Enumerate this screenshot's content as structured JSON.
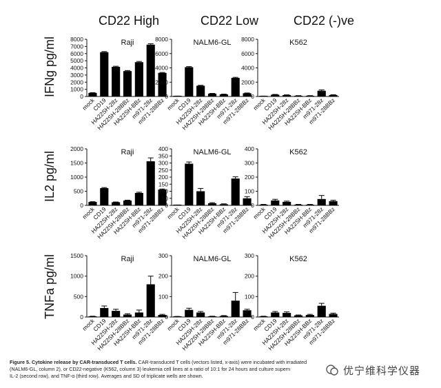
{
  "column_headers": [
    "CD22 High",
    "CD22 Low",
    "CD22 (-)ve"
  ],
  "row_labels": [
    "IFNg pg/ml",
    "IL2 pg/ml",
    "TNFa pg/ml"
  ],
  "cell_lines": [
    "Raji",
    "NALM6-GL",
    "K562"
  ],
  "chart_data": [
    {
      "type": "bar",
      "row": 0,
      "col": 0,
      "title": "Raji",
      "ylabel": "IFNg pg/ml",
      "ylim": [
        0,
        8000
      ],
      "yticks": [
        0,
        1000,
        2000,
        3000,
        4000,
        5000,
        6000,
        7000,
        8000
      ],
      "categories": [
        "mock",
        "CD19",
        "HA22SH-28z",
        "HA22SH-28BBz",
        "HA22SH-BBz",
        "m971-28z",
        "m971-28BBz"
      ],
      "values": [
        500,
        6200,
        4150,
        3550,
        4800,
        7250,
        3300
      ],
      "errors": [
        40,
        80,
        80,
        80,
        100,
        120,
        60
      ]
    },
    {
      "type": "bar",
      "row": 0,
      "col": 1,
      "title": "NALM6-GL",
      "ylabel": "",
      "ylim": [
        0,
        8000
      ],
      "yticks": [
        0,
        2000,
        4000,
        6000,
        8000
      ],
      "categories": [
        "mock",
        "CD19",
        "HA22SH-28z",
        "HA22SH-28BBz",
        "HA22SH-BBz",
        "m971-28z",
        "m971-28BBz"
      ],
      "values": [
        50,
        4100,
        1500,
        400,
        300,
        2600,
        450
      ],
      "errors": [
        10,
        80,
        60,
        30,
        30,
        80,
        40
      ]
    },
    {
      "type": "bar",
      "row": 0,
      "col": 2,
      "title": "K562",
      "ylabel": "",
      "ylim": [
        0,
        8000
      ],
      "yticks": [
        0,
        2000,
        4000,
        6000,
        8000
      ],
      "categories": [
        "mock",
        "CD19",
        "HA22SH-28z",
        "HA22SH-28BBz",
        "HA22SH-BBz",
        "m971-28z",
        "m971-28BBz"
      ],
      "values": [
        50,
        250,
        200,
        100,
        100,
        800,
        200
      ],
      "errors": [
        10,
        40,
        30,
        20,
        20,
        120,
        40
      ]
    },
    {
      "type": "bar",
      "row": 1,
      "col": 0,
      "title": "Raji",
      "ylabel": "IL2 pg/ml",
      "ylim": [
        0,
        2000
      ],
      "yticks": [
        0,
        500,
        1000,
        1500,
        2000
      ],
      "categories": [
        "mock",
        "CD19",
        "HA22SH-28z",
        "HA22SH-28BBz",
        "HA22SH-BBz",
        "m971-28z",
        "m971-28BBz"
      ],
      "values": [
        120,
        610,
        110,
        170,
        440,
        1560,
        560
      ],
      "errors": [
        10,
        20,
        10,
        15,
        25,
        120,
        20
      ]
    },
    {
      "type": "bar",
      "row": 1,
      "col": 1,
      "title": "NALM6-GL",
      "ylabel": "",
      "ylim": [
        0,
        400
      ],
      "yticks": [
        0,
        50,
        100,
        150,
        200,
        250,
        300,
        350,
        400
      ],
      "categories": [
        "mock",
        "CD19",
        "HA22SH-28z",
        "HA22SH-28BBz",
        "HA22SH-BBz",
        "m971-28z",
        "m971-28BBz"
      ],
      "values": [
        2,
        295,
        100,
        15,
        8,
        190,
        50
      ],
      "errors": [
        1,
        12,
        20,
        4,
        3,
        12,
        12
      ]
    },
    {
      "type": "bar",
      "row": 1,
      "col": 2,
      "title": "K562",
      "ylabel": "",
      "ylim": [
        0,
        400
      ],
      "yticks": [
        0,
        100,
        200,
        300,
        400
      ],
      "categories": [
        "mock",
        "CD19",
        "HA22SH-28z",
        "HA22SH-28BBz",
        "HA22SH-BBz",
        "m971-28z",
        "m971-28BBz"
      ],
      "values": [
        5,
        35,
        25,
        5,
        5,
        45,
        30
      ],
      "errors": [
        2,
        8,
        5,
        2,
        2,
        25,
        6
      ]
    },
    {
      "type": "bar",
      "row": 2,
      "col": 0,
      "title": "Raji",
      "ylabel": "TNFa pg/ml",
      "ylim": [
        0,
        1500
      ],
      "yticks": [
        0,
        500,
        1000,
        1500
      ],
      "categories": [
        "mock",
        "CD19",
        "HA22SH-28z",
        "HA22SH-28BBz",
        "HA22SH-BBz",
        "m971-28z",
        "m971-28BBz"
      ],
      "values": [
        15,
        220,
        150,
        60,
        110,
        800,
        50
      ],
      "errors": [
        5,
        50,
        40,
        20,
        60,
        200,
        15
      ]
    },
    {
      "type": "bar",
      "row": 2,
      "col": 1,
      "title": "NALM6-GL",
      "ylabel": "",
      "ylim": [
        0,
        300
      ],
      "yticks": [
        0,
        100,
        200,
        300
      ],
      "categories": [
        "mock",
        "CD19",
        "HA22SH-28z",
        "HA22SH-28BBz",
        "HA22SH-BBz",
        "m971-28z",
        "m971-28BBz"
      ],
      "values": [
        2,
        35,
        22,
        3,
        5,
        80,
        33
      ],
      "errors": [
        1,
        8,
        5,
        1,
        2,
        40,
        5
      ]
    },
    {
      "type": "bar",
      "row": 2,
      "col": 2,
      "title": "K562",
      "ylabel": "",
      "ylim": [
        0,
        300
      ],
      "yticks": [
        0,
        100,
        200,
        300
      ],
      "categories": [
        "mock",
        "CD19",
        "HA22SH-28z",
        "HA22SH-28BBz",
        "HA22SH-BBz",
        "m971-28z",
        "m971-28BBz"
      ],
      "values": [
        3,
        22,
        20,
        8,
        10,
        55,
        15
      ],
      "errors": [
        1,
        5,
        5,
        2,
        3,
        12,
        4
      ]
    }
  ],
  "caption": {
    "bold": "Figure 5. Cytokine release by CAR-transduced T cells.",
    "line1": " CAR-transduced T cells (vectors listed, x-axis) were incubated with irradiated",
    "line2": "(NALM6-GL, column 2), or CD22-negative (K562, column 3) leukemia cell lines at a ratio of 10:1 for 24 hours and culture supern",
    "line3": "IL-2 (second row), and TNF-α (third row). Averages and SD of triplicate wells are shown."
  },
  "watermark": "优宁维科学仪器"
}
